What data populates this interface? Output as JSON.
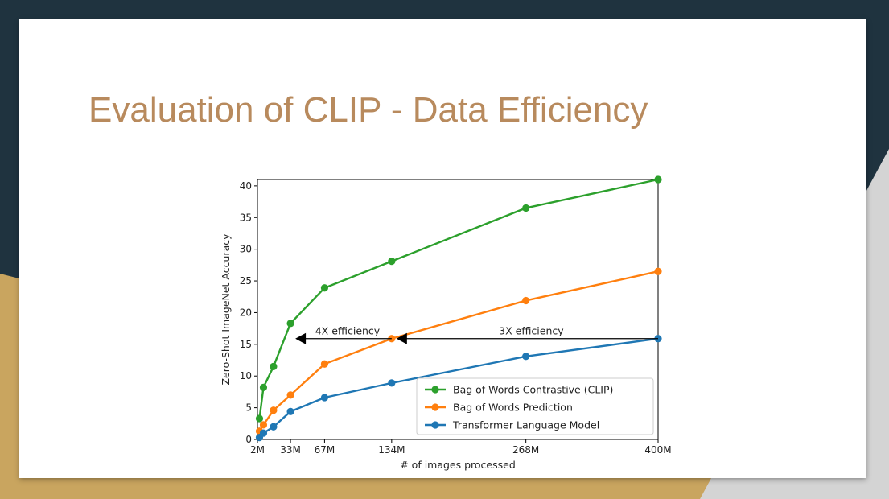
{
  "slide": {
    "title": "Evaluation of CLIP - Data Efficiency",
    "colors": {
      "title": "#b88a5d",
      "background_dark": "#1f333f",
      "background_gold": "#c9a55f",
      "background_gray": "#d4d4d4"
    }
  },
  "chart_data": {
    "type": "line",
    "title": "",
    "xlabel": "# of images processed",
    "ylabel": "Zero-Shot ImageNet Accuracy",
    "xlim": [
      0,
      400
    ],
    "ylim": [
      0,
      41
    ],
    "x_ticks": [
      {
        "value": 0,
        "label": "2M"
      },
      {
        "value": 33,
        "label": "33M"
      },
      {
        "value": 67,
        "label": "67M"
      },
      {
        "value": 134,
        "label": "134M"
      },
      {
        "value": 268,
        "label": "268M"
      },
      {
        "value": 400,
        "label": "400M"
      }
    ],
    "y_ticks": [
      0,
      5,
      10,
      15,
      20,
      25,
      30,
      35,
      40
    ],
    "grid": false,
    "legend_position": "lower-right",
    "series": [
      {
        "name": "Bag of Words Contrastive (CLIP)",
        "color": "#2ca02c",
        "x": [
          2,
          6,
          16,
          33,
          67,
          134,
          268,
          400
        ],
        "y": [
          3.3,
          8.2,
          11.5,
          18.3,
          23.9,
          28.1,
          36.5,
          41.0
        ]
      },
      {
        "name": "Bag of Words Prediction",
        "color": "#ff7f0e",
        "x": [
          2,
          6,
          16,
          33,
          67,
          134,
          268,
          400
        ],
        "y": [
          1.3,
          2.3,
          4.6,
          7.0,
          11.9,
          15.9,
          21.9,
          26.5
        ]
      },
      {
        "name": "Transformer Language Model",
        "color": "#1f77b4",
        "x": [
          2,
          6,
          16,
          33,
          67,
          134,
          268,
          400
        ],
        "y": [
          0.3,
          1.0,
          2.0,
          4.4,
          6.6,
          8.9,
          13.1,
          15.9
        ]
      }
    ],
    "annotations": [
      {
        "text": "4X efficiency",
        "x_from": 134,
        "x_to": 33,
        "y": 15.9
      },
      {
        "text": "3X efficiency",
        "x_from": 400,
        "x_to": 134,
        "y": 15.9
      }
    ]
  }
}
